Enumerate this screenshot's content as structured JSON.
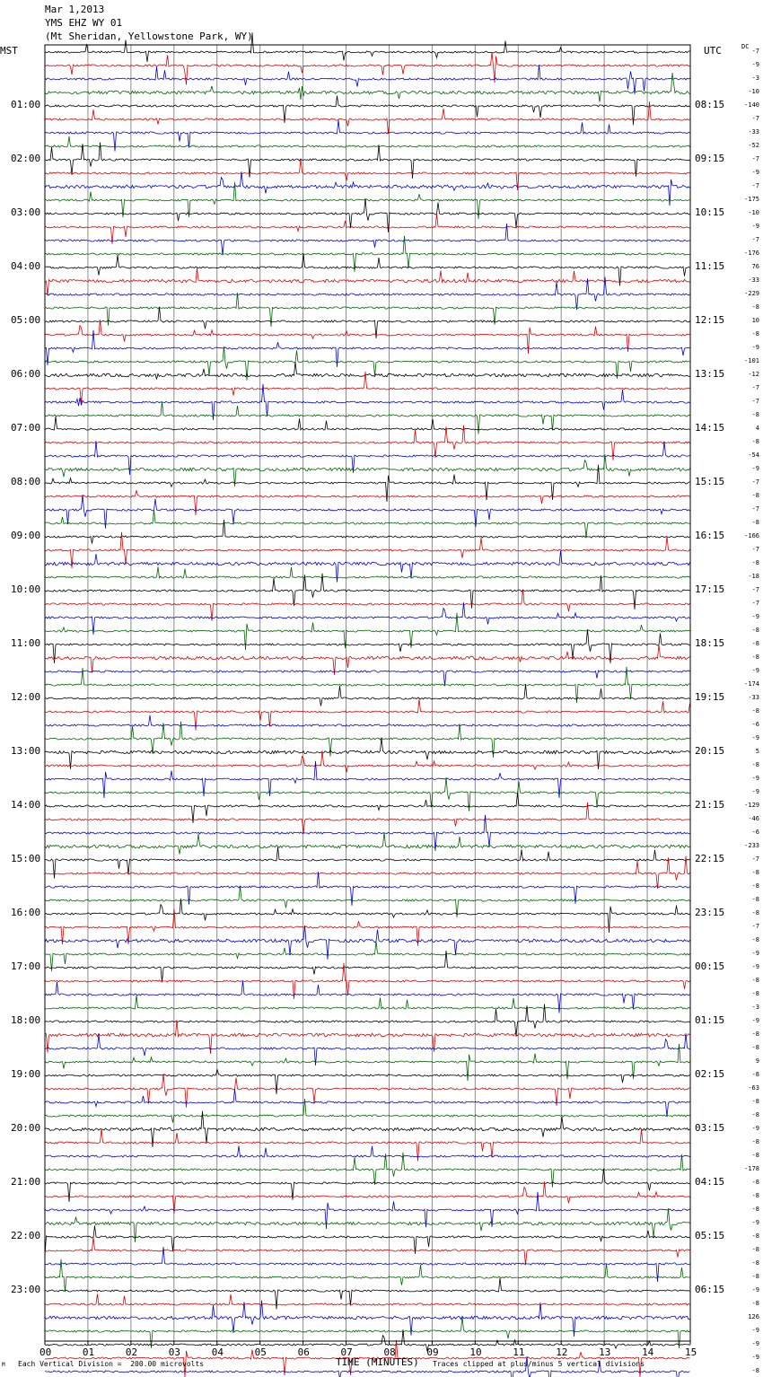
{
  "header": {
    "line1": "Mar 1,2013",
    "line2": "YMS EHZ WY 01",
    "line3": "(Mt Sheridan, Yellowstone Park, WY)"
  },
  "left_axis_title": "MST",
  "right_axis_title": "UTC",
  "dc_label": "DC",
  "footer": {
    "mark": "M",
    "scale_note": "Each Vertical Division =  200.00 microvolts",
    "xlabel": "TIME (MINUTES)",
    "clip_note": "Traces clipped at plus/minus 5 vertical divisions"
  },
  "colors": {
    "trace_cycle": [
      "#000000",
      "#e00000",
      "#0000d8",
      "#006400"
    ],
    "grid": "#8c8c8c",
    "frame": "#000000"
  },
  "chart_data": {
    "type": "line",
    "title": "YMS EHZ WY 01",
    "xlabel": "TIME (MINUTES)",
    "xlim": [
      0,
      15
    ],
    "x_ticks": [
      "00",
      "01",
      "02",
      "03",
      "04",
      "05",
      "06",
      "07",
      "08",
      "09",
      "10",
      "11",
      "12",
      "13",
      "14",
      "15"
    ],
    "rows_per_hour": 4,
    "row_minutes": 15,
    "left_time_labels": [
      "01:00",
      "02:00",
      "03:00",
      "04:00",
      "05:00",
      "06:00",
      "07:00",
      "08:00",
      "09:00",
      "10:00",
      "11:00",
      "12:00",
      "13:00",
      "14:00",
      "15:00",
      "16:00",
      "17:00",
      "18:00",
      "19:00",
      "20:00",
      "21:00",
      "22:00",
      "23:00"
    ],
    "right_time_labels": [
      "08:15",
      "09:15",
      "10:15",
      "11:15",
      "12:15",
      "13:15",
      "14:15",
      "15:15",
      "16:15",
      "17:15",
      "18:15",
      "19:15",
      "20:15",
      "21:15",
      "22:15",
      "23:15",
      "00:15",
      "01:15",
      "02:15",
      "03:15",
      "04:15",
      "05:15",
      "06:15"
    ],
    "dc_offsets": [
      "-7",
      "-9",
      "-3",
      "-10",
      "-140",
      "-7",
      "-33",
      "-52",
      "-7",
      "-9",
      "-7",
      "-175",
      "-10",
      "-9",
      "-7",
      "-176",
      "76",
      "-33",
      "-229",
      "-8",
      "10",
      "-8",
      "-9",
      "-101",
      "-12",
      "-7",
      "-7",
      "-8",
      "4",
      "-8",
      "-54",
      "-9",
      "-7",
      "-8",
      "-7",
      "-8",
      "-166",
      "-7",
      "-8",
      "-18",
      "-7",
      "-7",
      "-9",
      "-8",
      "-8",
      "-8",
      "-9",
      "-174",
      "-33",
      "-8",
      "-6",
      "-9",
      "5",
      "-8",
      "-9",
      "-9",
      "-129",
      "-46",
      "-6",
      "-233",
      "-7",
      "-8",
      "-8",
      "-8",
      "-8",
      "-7",
      "-8",
      "-9",
      "-9",
      "-8",
      "-8",
      "-3",
      "-9",
      "-8",
      "-8",
      "9",
      "-8",
      "-63",
      "-8",
      "-8",
      "-9",
      "-8",
      "-8",
      "-178",
      "-8",
      "-8",
      "-8",
      "-9",
      "-8",
      "-8",
      "-8",
      "-8",
      "-9",
      "-8",
      "126",
      "-9",
      "-9",
      "-9",
      "-8"
    ],
    "events": [
      {
        "row": 3,
        "minute_start": 5.9,
        "minute_end": 7.0,
        "amplitude": 3.2
      },
      {
        "row": 26,
        "minute_start": 0.7,
        "minute_end": 2.4,
        "amplitude": 1.6
      },
      {
        "row": 24,
        "minute_start": 3.8,
        "minute_end": 4.8,
        "amplitude": 0.7
      }
    ]
  }
}
